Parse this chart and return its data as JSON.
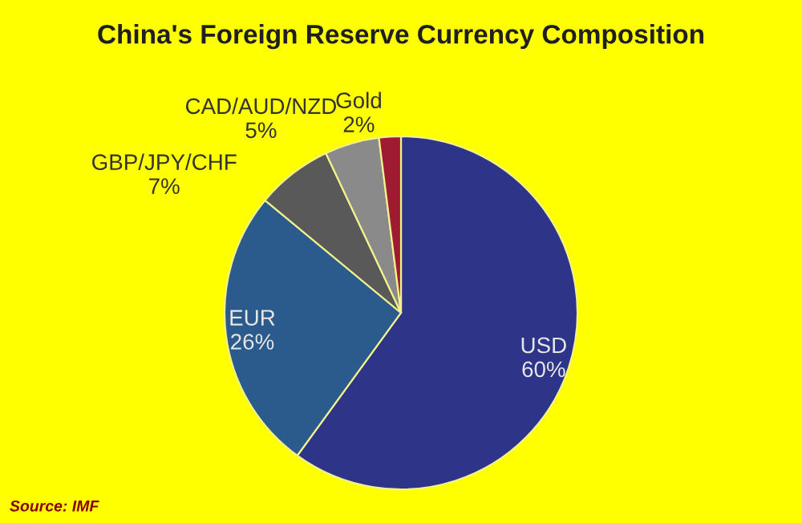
{
  "chart_data": {
    "type": "pie",
    "title": "China's Foreign Reserve Currency Composition",
    "categories": [
      "USD",
      "EUR",
      "GBP/JPY/CHF",
      "CAD/AUD/NZD",
      "Gold"
    ],
    "values": [
      60,
      26,
      7,
      5,
      2
    ],
    "value_labels": [
      "60%",
      "26%",
      "7%",
      "5%",
      "2%"
    ],
    "colors": [
      "#2e3588",
      "#2b5a8c",
      "#595959",
      "#8a8a8a",
      "#9e1b32"
    ],
    "annotations": [
      "Source: IMF"
    ]
  }
}
